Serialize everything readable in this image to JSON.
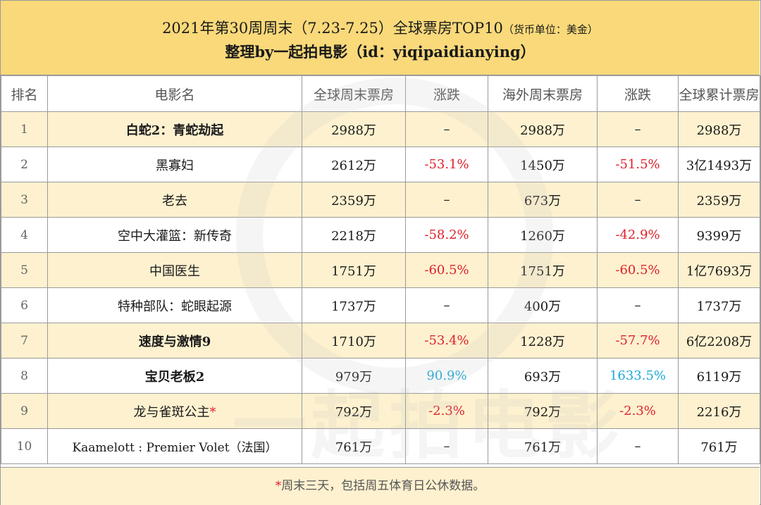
{
  "title": {
    "line1_main": "2021年第30周周末（7.23-7.25）全球票房TOP10",
    "line1_note": "（货币单位：美金）",
    "line2": "整理by一起拍电影（id：yiqipaidianying）"
  },
  "headers": [
    "排名",
    "电影名",
    "全球周末票房",
    "涨跌",
    "海外周末票房",
    "涨跌",
    "全球累计票房"
  ],
  "rows": [
    {
      "rank": "1",
      "title": "白蛇2：青蛇劫起",
      "global_weekend": "2988万",
      "global_change": "–",
      "overseas_weekend": "2988万",
      "overseas_change": "–",
      "cumulative": "2988万"
    },
    {
      "rank": "2",
      "title": "黑寡妇",
      "global_weekend": "2612万",
      "global_change": "-53.1%",
      "overseas_weekend": "1450万",
      "overseas_change": "-51.5%",
      "cumulative": "3亿1493万"
    },
    {
      "rank": "3",
      "title": "老去",
      "global_weekend": "2359万",
      "global_change": "–",
      "overseas_weekend": "673万",
      "overseas_change": "–",
      "cumulative": "2359万"
    },
    {
      "rank": "4",
      "title": "空中大灌篮：新传奇",
      "global_weekend": "2218万",
      "global_change": "-58.2%",
      "overseas_weekend": "1260万",
      "overseas_change": "-42.9%",
      "cumulative": "9399万"
    },
    {
      "rank": "5",
      "title": "中国医生",
      "global_weekend": "1751万",
      "global_change": "-60.5%",
      "overseas_weekend": "1751万",
      "overseas_change": "-60.5%",
      "cumulative": "1亿7693万"
    },
    {
      "rank": "6",
      "title": "特种部队：蛇眼起源",
      "global_weekend": "1737万",
      "global_change": "–",
      "overseas_weekend": "400万",
      "overseas_change": "–",
      "cumulative": "1737万"
    },
    {
      "rank": "7",
      "title": "速度与激情9",
      "global_weekend": "1710万",
      "global_change": "-53.4%",
      "overseas_weekend": "1228万",
      "overseas_change": "-57.7%",
      "cumulative": "6亿2208万"
    },
    {
      "rank": "8",
      "title": "宝贝老板2",
      "global_weekend": "979万",
      "global_change": "90.9%",
      "overseas_weekend": "693万",
      "overseas_change": "1633.5%",
      "cumulative": "6119万"
    },
    {
      "rank": "9",
      "title": "龙与雀斑公主",
      "title_mark": "*",
      "global_weekend": "792万",
      "global_change": "-2.3%",
      "overseas_weekend": "792万",
      "overseas_change": "-2.3%",
      "cumulative": "2216万"
    },
    {
      "rank": "10",
      "title": "Kaamelott : Premier Volet（法国）",
      "global_weekend": "761万",
      "global_change": "–",
      "overseas_weekend": "761万",
      "overseas_change": "–",
      "cumulative": "761万"
    }
  ],
  "footer": {
    "mark": "*",
    "text": "周末三天，包括周五体育日公休数据。"
  },
  "watermark": "一起拍电影",
  "colors": {
    "header_bg": "#f9d97a",
    "stripe": "#fdf1cf",
    "negative": "#e0202a",
    "positive": "#1aa8d8"
  }
}
